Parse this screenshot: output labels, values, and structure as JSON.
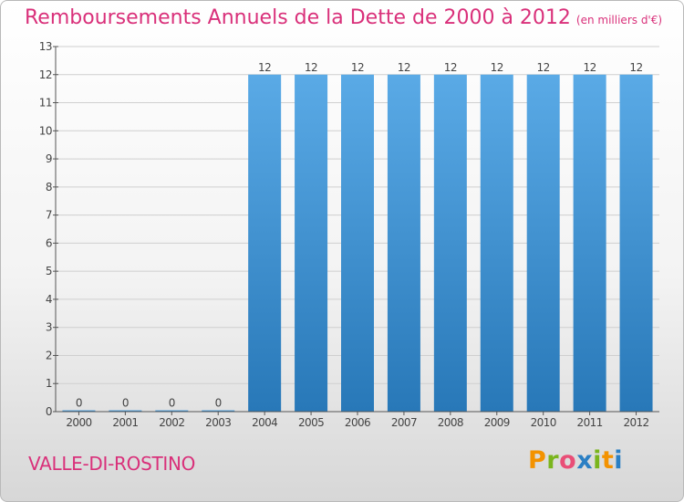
{
  "header": {
    "title": "Remboursements Annuels de la Dette de 2000 à 2012",
    "unit": "(en milliers d'€)"
  },
  "footer": {
    "commune": "VALLE-DI-ROSTINO",
    "logo": {
      "text": "Proxiti",
      "letters": [
        {
          "ch": "P",
          "color": "#f39200"
        },
        {
          "ch": "r",
          "color": "#7ab51d"
        },
        {
          "ch": "o",
          "color": "#e94e77"
        },
        {
          "ch": "x",
          "color": "#2a7fc4"
        },
        {
          "ch": "i",
          "color": "#7ab51d"
        },
        {
          "ch": "t",
          "color": "#f39200"
        },
        {
          "ch": "i",
          "color": "#2a7fc4"
        }
      ]
    }
  },
  "colors": {
    "bar_top": "#5aaae6",
    "bar_bottom": "#2878b8",
    "grid": "#cfcfcf",
    "axis": "#555555",
    "text": "#444444"
  },
  "chart_data": {
    "type": "bar",
    "categories": [
      "2000",
      "2001",
      "2002",
      "2003",
      "2004",
      "2005",
      "2006",
      "2007",
      "2008",
      "2009",
      "2010",
      "2011",
      "2012"
    ],
    "values": [
      0,
      0,
      0,
      0,
      12,
      12,
      12,
      12,
      12,
      12,
      12,
      12,
      12
    ],
    "data_labels": [
      "0",
      "0",
      "0",
      "0",
      "12",
      "12",
      "12",
      "12",
      "12",
      "12",
      "12",
      "12",
      "12"
    ],
    "y_ticks": [
      0,
      1,
      2,
      3,
      4,
      5,
      6,
      7,
      8,
      9,
      10,
      11,
      12,
      13
    ],
    "ylim": [
      0,
      13
    ],
    "grid": true,
    "title": "Remboursements Annuels de la Dette de 2000 à 2012",
    "xlabel": "",
    "ylabel": ""
  }
}
